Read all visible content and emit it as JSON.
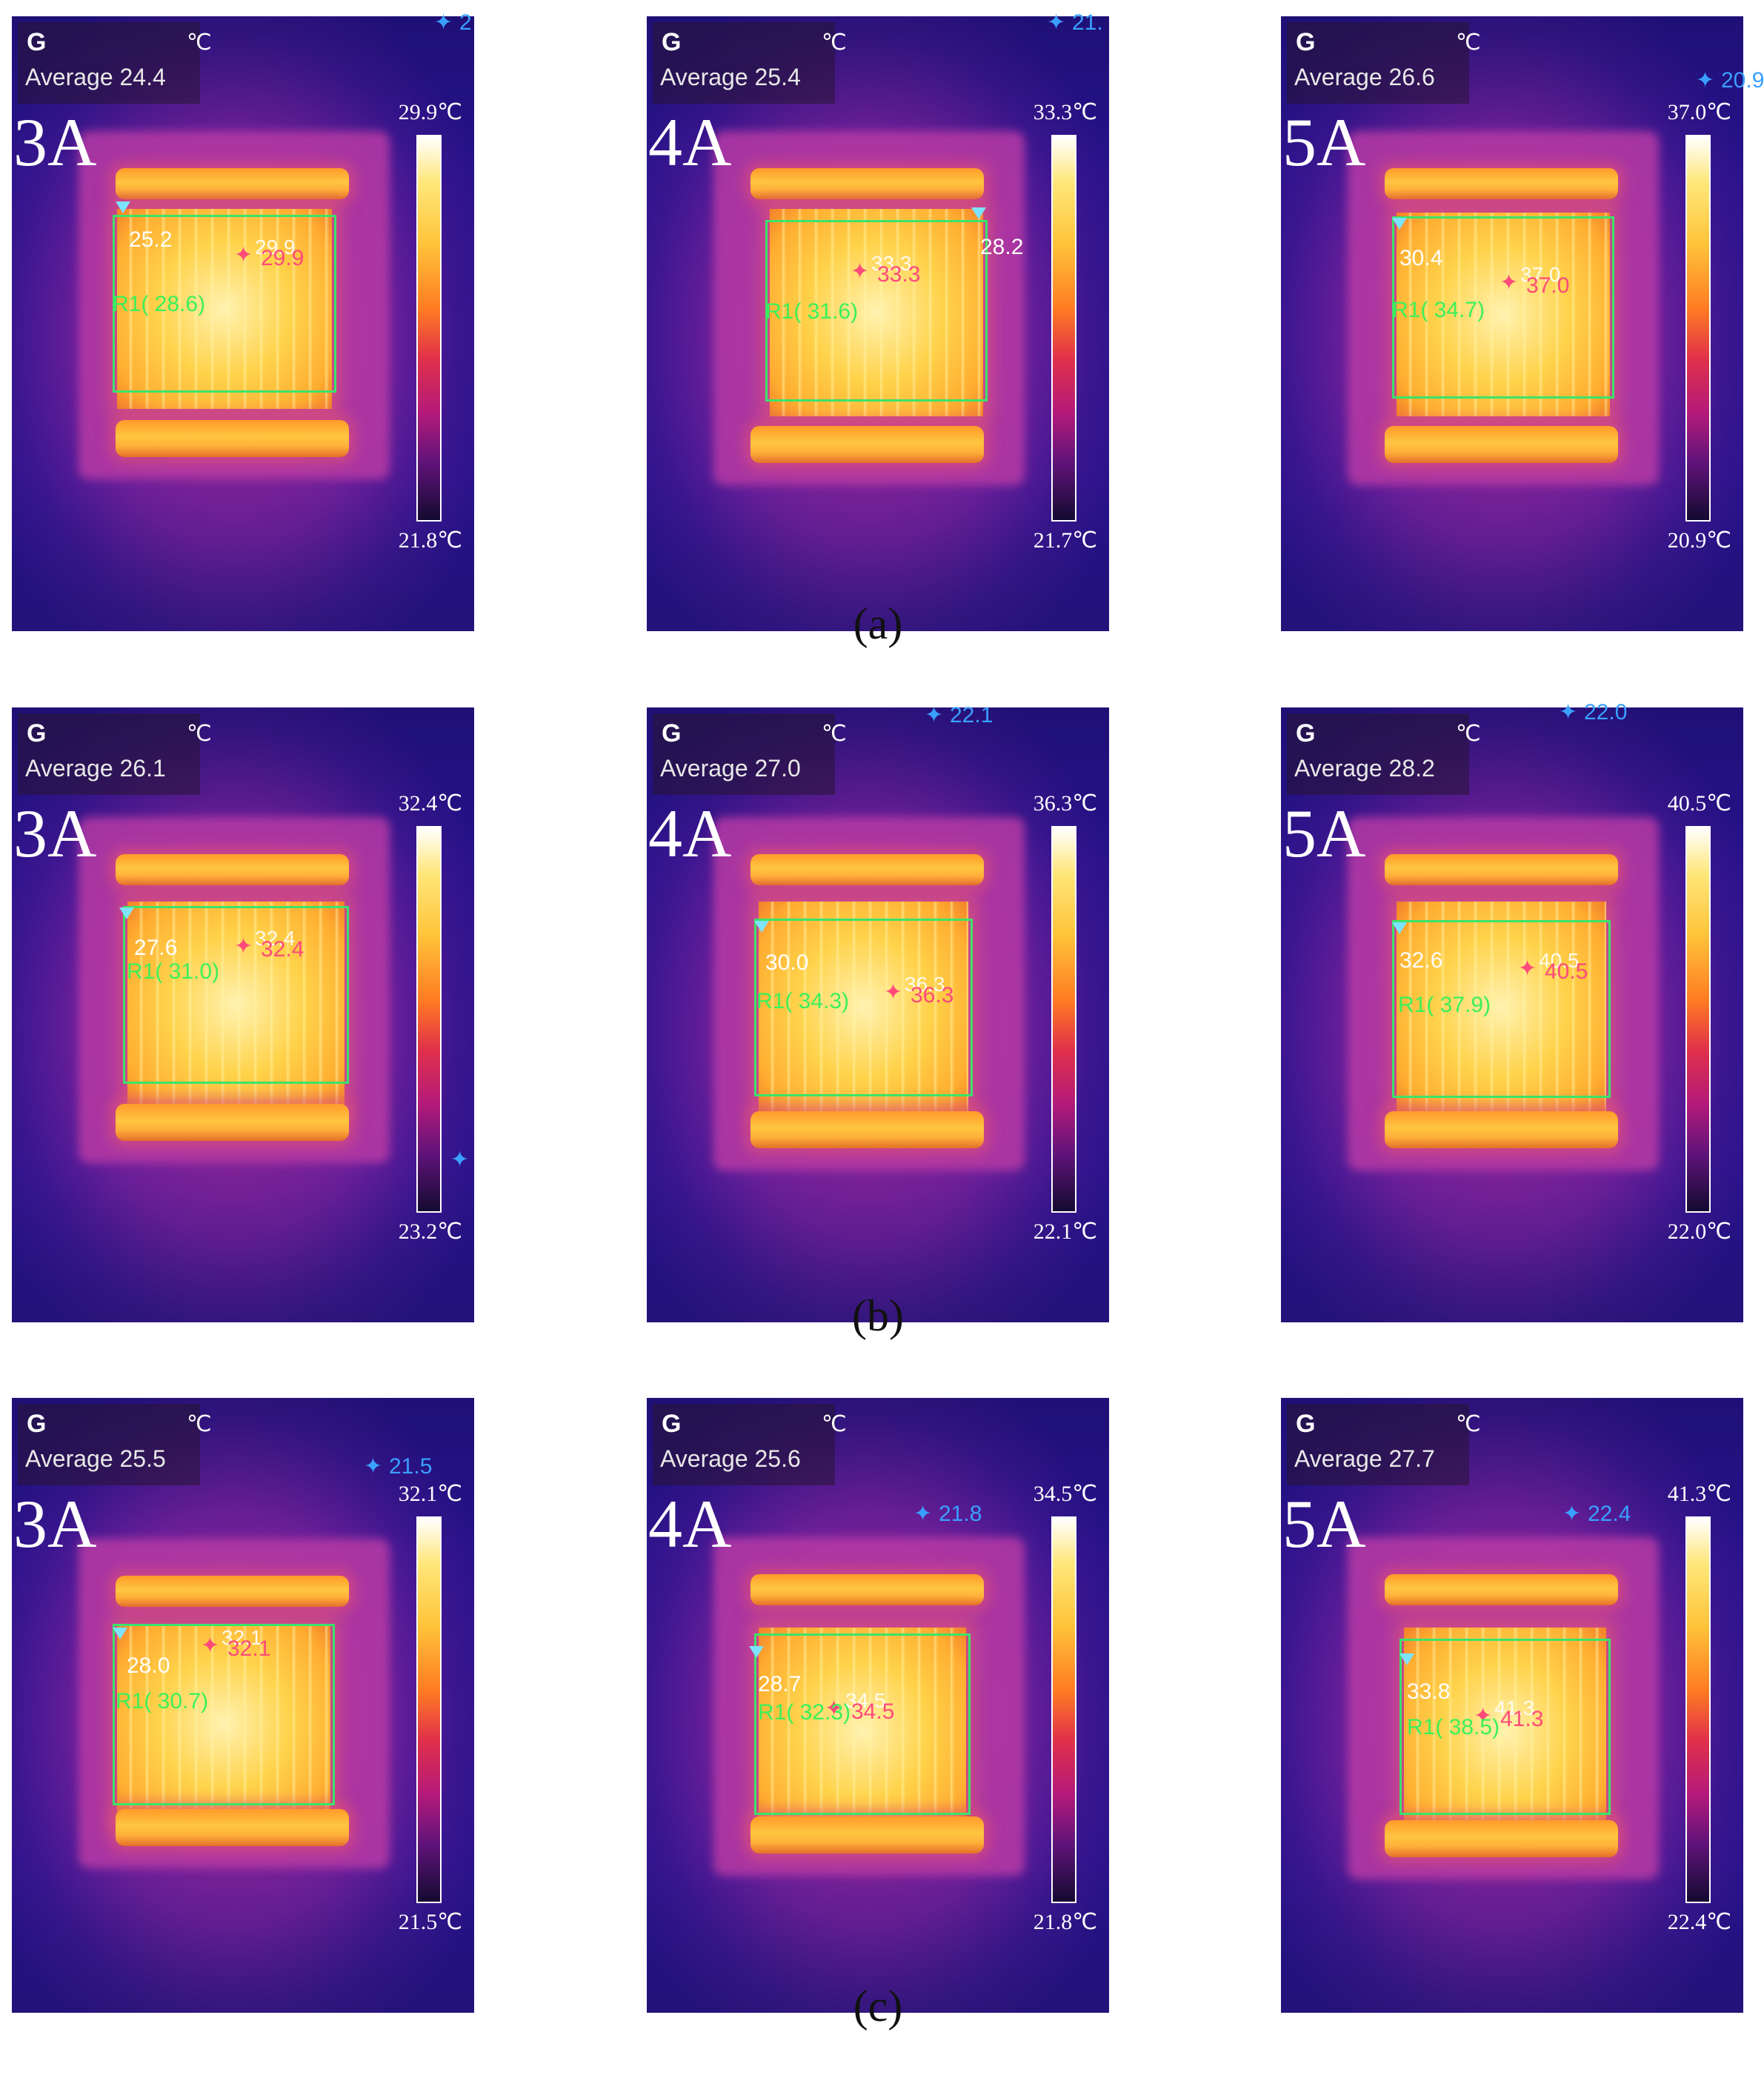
{
  "header_letter": "G",
  "unit_symbol": "℃",
  "region_label": "R1",
  "captions": [
    "(a)",
    "(b)",
    "(c)"
  ],
  "rows": [
    {
      "panels": [
        {
          "current": "3A",
          "average": "Average 24.4",
          "scale_max": "29.9℃",
          "scale_min": "21.8℃",
          "point_left": "25.2",
          "hot_white": "29.9",
          "hot_red": "29.9",
          "r1": "( 28.6)",
          "cold": "2"
        },
        {
          "current": "4A",
          "average": "Average 25.4",
          "scale_max": "33.3℃",
          "scale_min": "21.7℃",
          "point_left": "28.2",
          "hot_white": "33.3",
          "hot_red": "33.3",
          "r1": "( 31.6)",
          "cold": "21."
        },
        {
          "current": "5A",
          "average": "Average 26.6",
          "scale_max": "37.0℃",
          "scale_min": "20.9℃",
          "point_left": "30.4",
          "hot_white": "37.0",
          "hot_red": "37.0",
          "r1": "( 34.7)",
          "cold": "20.9"
        }
      ]
    },
    {
      "panels": [
        {
          "current": "3A",
          "average": "Average 26.1",
          "scale_max": "32.4℃",
          "scale_min": "23.2℃",
          "point_left": "27.6",
          "hot_white": "32.4",
          "hot_red": "32.4",
          "r1": "( 31.0)",
          "cold": ""
        },
        {
          "current": "4A",
          "average": "Average 27.0",
          "scale_max": "36.3℃",
          "scale_min": "22.1℃",
          "point_left": "30.0",
          "hot_white": "36.3",
          "hot_red": "36.3",
          "r1": "( 34.3)",
          "cold": "22.1"
        },
        {
          "current": "5A",
          "average": "Average 28.2",
          "scale_max": "40.5℃",
          "scale_min": "22.0℃",
          "point_left": "32.6",
          "hot_white": "40.5",
          "hot_red": "40.5",
          "r1": "( 37.9)",
          "cold": "22.0"
        }
      ]
    },
    {
      "panels": [
        {
          "current": "3A",
          "average": "Average 25.5",
          "scale_max": "32.1℃",
          "scale_min": "21.5℃",
          "point_left": "28.0",
          "hot_white": "32.1",
          "hot_red": "32.1",
          "r1": "( 30.7)",
          "cold": "21.5"
        },
        {
          "current": "4A",
          "average": "Average 25.6",
          "scale_max": "34.5℃",
          "scale_min": "21.8℃",
          "point_left": "28.7",
          "hot_white": "34.5",
          "hot_red": "34.5",
          "r1": "( 32.3)",
          "cold": "21.8"
        },
        {
          "current": "5A",
          "average": "Average 27.7",
          "scale_max": "41.3℃",
          "scale_min": "22.4℃",
          "point_left": "33.8",
          "hot_white": "41.3",
          "hot_red": "41.3",
          "r1": "( 38.5)",
          "cold": "22.4"
        }
      ]
    }
  ],
  "icons": {
    "max_marker": "hot-spot-marker-icon",
    "min_marker": "cold-spot-marker-icon",
    "point_marker": "spot-marker-triangle-icon"
  }
}
